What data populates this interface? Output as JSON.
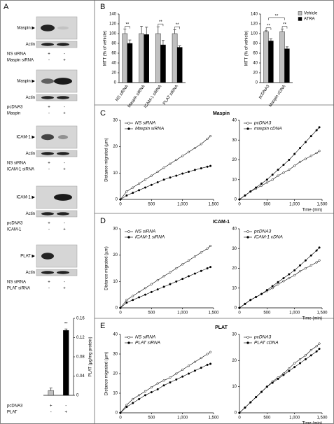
{
  "panel_labels": [
    "A",
    "B",
    "C",
    "D",
    "E"
  ],
  "blots": [
    {
      "target": "Maspin ▶",
      "control": "Actin",
      "rows": [
        {
          "label": "NS siRNA",
          "marks": [
            "+",
            "-"
          ]
        },
        {
          "label": "Maspin siRNA",
          "marks": [
            "-",
            "+"
          ]
        }
      ]
    },
    {
      "target": "Maspin ▶",
      "control": "Actin",
      "rows": [
        {
          "label": "pcDNA3",
          "marks": [
            "+",
            "-"
          ]
        },
        {
          "label": "Maspin",
          "marks": [
            "-",
            "+"
          ]
        }
      ]
    },
    {
      "target": "ICAM-1 ▶",
      "control": "Actin",
      "rows": [
        {
          "label": "NS siRNA",
          "marks": [
            "+",
            "-"
          ]
        },
        {
          "label": "ICAM-1 siRNA",
          "marks": [
            "-",
            "+"
          ]
        }
      ]
    },
    {
      "target": "ICAM-1 ▶",
      "control": "Actin",
      "rows": [
        {
          "label": "pcDNA3",
          "marks": [
            "+",
            "-"
          ]
        },
        {
          "label": "ICAM-1",
          "marks": [
            "-",
            "+"
          ]
        }
      ]
    },
    {
      "target": "PLAT ▶",
      "control": "Actin",
      "rows": [
        {
          "label": "NS siRNA",
          "marks": [
            "+",
            "-"
          ]
        },
        {
          "label": "PLAT siRNA",
          "marks": [
            "-",
            "+"
          ]
        }
      ]
    }
  ],
  "chart_data": [
    {
      "type": "bar",
      "categories": [
        null,
        null
      ],
      "values": [
        0.01,
        0.135
      ],
      "errors": [
        0.005,
        0.003
      ],
      "colors": [
        "#c0c0c0",
        "#000000"
      ],
      "ylabel": "PLAT (µg/mg protein)",
      "ylim": [
        0,
        0.16
      ],
      "yticks": [
        0,
        0.04,
        0.08,
        0.12,
        0.16
      ],
      "yaxis_position": "right",
      "annotations": [
        "**"
      ],
      "conditions": [
        {
          "label": "pcDNA3",
          "marks": [
            "+",
            "-"
          ]
        },
        {
          "label": "PLAT",
          "marks": [
            "-",
            "+"
          ]
        }
      ]
    },
    {
      "type": "bar",
      "categories": [
        "NS siRNA",
        "Maspin siRNA",
        "ICAM-1 siRNA",
        "PLAT siRNA"
      ],
      "series": [
        {
          "name": "Vehicle",
          "color": "#c0c0c0",
          "values": [
            100,
            100,
            100,
            100
          ],
          "errors": [
            9,
            15,
            14,
            8
          ]
        },
        {
          "name": "ATRA",
          "color": "#000000",
          "values": [
            80,
            98,
            77,
            72
          ],
          "errors": [
            7,
            15,
            9,
            3
          ]
        }
      ],
      "ylabel": "MTT (% of vehicle)",
      "ylim": [
        0,
        140
      ],
      "yticks": [
        0,
        20,
        40,
        60,
        80,
        100,
        120,
        140
      ],
      "annotations": [
        "**",
        "**",
        "**"
      ]
    },
    {
      "type": "bar",
      "categories": [
        "pcDNA3",
        "Maspin cDNA"
      ],
      "series": [
        {
          "name": "Vehicle",
          "color": "#c0c0c0",
          "values": [
            104,
            104
          ],
          "errors": [
            2,
            5
          ]
        },
        {
          "name": "ATRA",
          "color": "#000000",
          "values": [
            85,
            69
          ],
          "errors": [
            4,
            4
          ]
        }
      ],
      "ylabel": "MTT (% of vehicle)",
      "ylim": [
        0,
        140
      ],
      "yticks": [
        0,
        20,
        40,
        60,
        80,
        100,
        120,
        140
      ],
      "annotations": [
        "**",
        "**",
        "**"
      ],
      "legend": "upper right"
    },
    {
      "type": "line",
      "title": "Maspin",
      "ylabel": "Distance migrated (µm)",
      "legend": "upper left",
      "x": [
        0,
        100,
        200,
        300,
        400,
        500,
        600,
        700,
        800,
        900,
        1000,
        1100,
        1200,
        1300,
        1400,
        1450
      ],
      "series": [
        {
          "name": "NS siRNA",
          "color": "#000000",
          "marker": "open",
          "values": [
            0,
            3,
            4.5,
            6,
            7.5,
            9,
            10.5,
            12,
            13.5,
            15,
            16.5,
            18,
            19.5,
            21,
            23,
            24
          ]
        },
        {
          "name": "Maspin siRNA",
          "color": "#000000",
          "marker": "filled",
          "values": [
            0,
            1.5,
            2.5,
            3.5,
            4.5,
            5.5,
            6.5,
            7.5,
            8.3,
            9,
            9.8,
            10.5,
            11.2,
            11.8,
            12.4,
            12.7
          ]
        }
      ],
      "xlim": [
        0,
        1500
      ],
      "xticks": [
        0,
        500,
        {
          "value": 1000,
          "label": "1,000"
        },
        {
          "value": 1500,
          "label": "1,500"
        }
      ],
      "ylim": [
        0,
        30
      ],
      "yticks": [
        0,
        10,
        20,
        30
      ]
    },
    {
      "type": "line",
      "xlabel": "Time (min)",
      "legend": "upper left",
      "x": [
        0,
        100,
        200,
        300,
        400,
        500,
        600,
        700,
        800,
        900,
        1000,
        1100,
        1200,
        1300,
        1400,
        1450
      ],
      "series": [
        {
          "name": "pcDNA3",
          "color": "#000000",
          "marker": "open",
          "values": [
            0,
            2,
            4,
            5.5,
            7,
            8.5,
            10,
            12,
            13.5,
            15,
            17,
            19,
            20.5,
            22,
            23.5,
            24.5
          ]
        },
        {
          "name": "maspin cDNA",
          "color": "#000000",
          "marker": "filled",
          "values": [
            0,
            2,
            4,
            6,
            8,
            10,
            12.5,
            15,
            17.5,
            20,
            23,
            26,
            29,
            32,
            35,
            36.5
          ]
        }
      ],
      "xlim": [
        0,
        1500
      ],
      "xticks": [
        0,
        500,
        {
          "value": 1000,
          "label": "1,000"
        },
        {
          "value": 1500,
          "label": "1,500"
        }
      ],
      "ylim": [
        0,
        40
      ],
      "yticks": [
        0,
        10,
        20,
        30,
        40
      ]
    },
    {
      "type": "line",
      "title": "ICAM-1",
      "ylabel": "Distance migrated (µm)",
      "legend": "upper left",
      "x": [
        0,
        100,
        200,
        300,
        400,
        500,
        600,
        700,
        800,
        900,
        1000,
        1100,
        1200,
        1300,
        1400,
        1450
      ],
      "series": [
        {
          "name": "NS siRNA",
          "color": "#000000",
          "marker": "open",
          "values": [
            0,
            3,
            4.5,
            6,
            7.5,
            9,
            10.5,
            12,
            13.5,
            15,
            16.5,
            18,
            19.5,
            21,
            22.5,
            23.5
          ]
        },
        {
          "name": "ICAM-1 siRNA",
          "color": "#000000",
          "marker": "filled",
          "values": [
            0,
            2,
            3,
            4,
            5,
            6,
            7,
            8,
            9,
            10,
            11,
            12,
            13,
            14,
            15,
            15.5
          ]
        }
      ],
      "xlim": [
        0,
        1500
      ],
      "xticks": [
        0,
        500,
        {
          "value": 1000,
          "label": "1,000"
        },
        {
          "value": 1500,
          "label": "1,500"
        }
      ],
      "ylim": [
        0,
        30
      ],
      "yticks": [
        0,
        10,
        20,
        30
      ]
    },
    {
      "type": "line",
      "xlabel": "Time (min)",
      "legend": "upper left",
      "x": [
        0,
        100,
        200,
        300,
        400,
        500,
        600,
        700,
        800,
        900,
        1000,
        1100,
        1200,
        1300,
        1400,
        1450
      ],
      "series": [
        {
          "name": "pcDNA3",
          "color": "#000000",
          "marker": "open",
          "values": [
            0,
            2,
            4,
            5.5,
            7,
            8.5,
            10,
            12,
            13.5,
            15,
            16.5,
            18.5,
            20,
            21.5,
            23,
            24
          ]
        },
        {
          "name": "ICAM-1 cDNA",
          "color": "#000000",
          "marker": "filled",
          "values": [
            0,
            2,
            4,
            5.5,
            7,
            9,
            11,
            13,
            15,
            17,
            19,
            21.5,
            24,
            26.5,
            29,
            30.5
          ]
        }
      ],
      "xlim": [
        0,
        1500
      ],
      "xticks": [
        0,
        500,
        {
          "value": 1000,
          "label": "1,000"
        },
        {
          "value": 1500,
          "label": "1,500"
        }
      ],
      "ylim": [
        0,
        40
      ],
      "yticks": [
        0,
        10,
        20,
        30,
        40
      ]
    },
    {
      "type": "line",
      "title": "PLAT",
      "ylabel": "Distance migrated (µm)",
      "legend": "upper left",
      "x": [
        0,
        100,
        200,
        300,
        400,
        500,
        600,
        700,
        800,
        900,
        1000,
        1100,
        1200,
        1300,
        1400,
        1450
      ],
      "series": [
        {
          "name": "NS siRNA",
          "color": "#000000",
          "marker": "open",
          "values": [
            0,
            4,
            7,
            9,
            11,
            13,
            15,
            16.5,
            18,
            20,
            22,
            24,
            26,
            28,
            30,
            31
          ]
        },
        {
          "name": "PLAT siRNA",
          "color": "#000000",
          "marker": "filled",
          "values": [
            0,
            3,
            5,
            7,
            9,
            10.5,
            12,
            14,
            15.5,
            17,
            18.5,
            20,
            21.5,
            23,
            24.5,
            25
          ]
        }
      ],
      "xlim": [
        0,
        1500
      ],
      "xticks": [
        0,
        500,
        {
          "value": 1000,
          "label": "1,000"
        },
        {
          "value": 1500,
          "label": "1,500"
        }
      ],
      "ylim": [
        0,
        40
      ],
      "yticks": [
        0,
        10,
        20,
        30,
        40
      ]
    },
    {
      "type": "line",
      "xlabel": "Time (min)",
      "legend": "upper left",
      "x": [
        0,
        100,
        200,
        300,
        400,
        500,
        600,
        700,
        800,
        900,
        1000,
        1100,
        1200,
        1300,
        1400,
        1450
      ],
      "series": [
        {
          "name": "pcDNA3",
          "color": "#000000",
          "marker": "open",
          "values": [
            0,
            2,
            4,
            6,
            8,
            10,
            12,
            13.5,
            15,
            17,
            19,
            20.5,
            22,
            24,
            25.5,
            26.5
          ]
        },
        {
          "name": "PLAT cDNA",
          "color": "#000000",
          "marker": "filled",
          "values": [
            0,
            2,
            4,
            6,
            8,
            10,
            11.5,
            13,
            14.5,
            16,
            17.5,
            19,
            20.5,
            22,
            23.5,
            24.5
          ]
        }
      ],
      "xlim": [
        0,
        1500
      ],
      "xticks": [
        0,
        500,
        {
          "value": 1000,
          "label": "1,000"
        },
        {
          "value": 1500,
          "label": "1,500"
        }
      ],
      "ylim": [
        0,
        30
      ],
      "yticks": [
        0,
        10,
        20,
        30
      ]
    }
  ]
}
